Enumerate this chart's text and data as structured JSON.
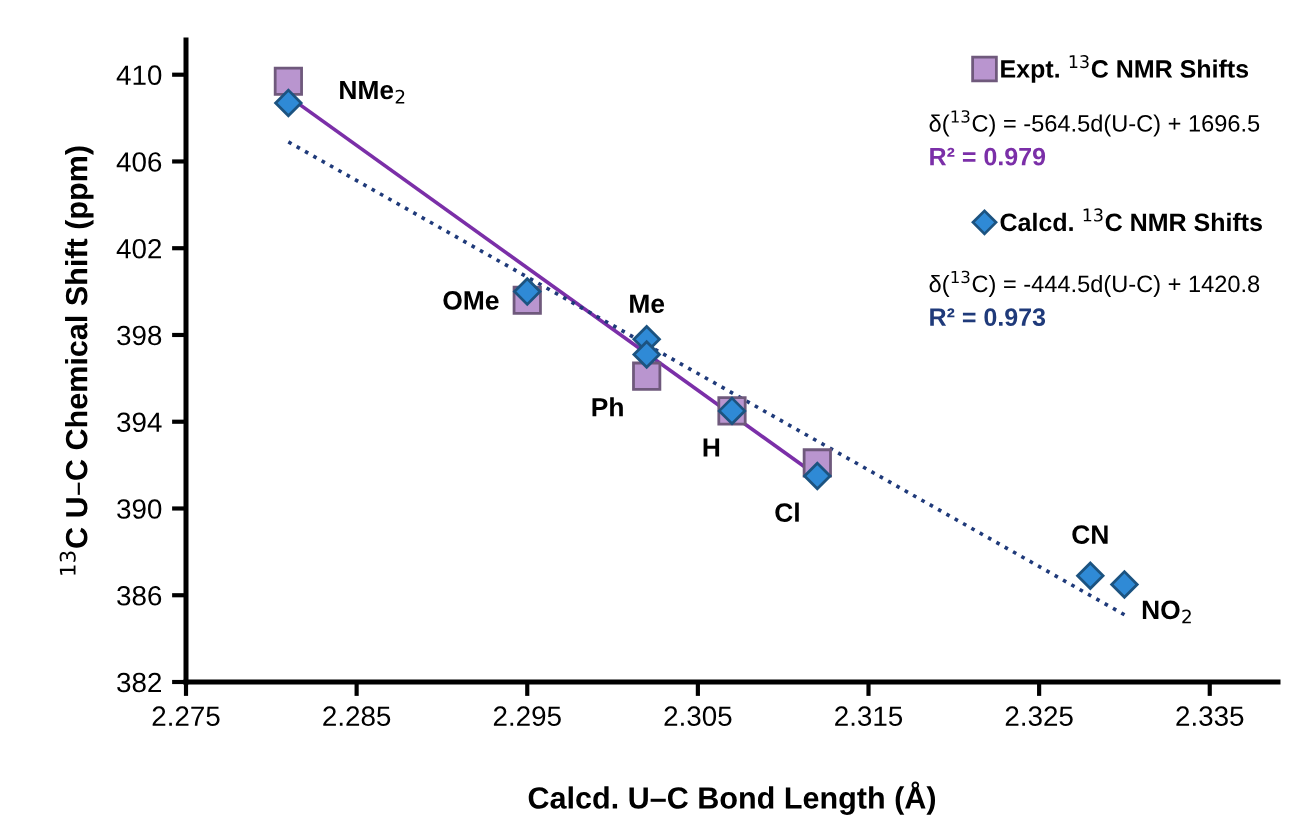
{
  "chart_data": {
    "type": "scatter",
    "xlabel": "Calcd. U–C Bond Length (Å)",
    "ylabel": "$^{13}$C U–C Chemical Shift (ppm)",
    "xlim": [
      2.275,
      2.339
    ],
    "xticks": [
      2.275,
      2.285,
      2.295,
      2.305,
      2.315,
      2.325,
      2.335
    ],
    "ylim": [
      382,
      411.6
    ],
    "yticks": [
      382,
      386,
      390,
      394,
      398,
      402,
      406,
      410
    ],
    "grid": false,
    "legend": "top right",
    "series": [
      {
        "name": "Expt. $^{13}$C NMR Shifts",
        "marker": "square",
        "color": "#b995cf",
        "x": [
          2.281,
          2.295,
          2.302,
          2.307,
          2.312
        ],
        "values": [
          409.7,
          399.6,
          396.1,
          394.5,
          392.1
        ]
      },
      {
        "name": "Calcd. $^{13}$C NMR Shifts",
        "marker": "diamond",
        "color": "#2f8ad6",
        "x": [
          2.281,
          2.295,
          2.302,
          2.302,
          2.307,
          2.312,
          2.328,
          2.33
        ],
        "values": [
          408.7,
          400.0,
          397.8,
          397.1,
          394.5,
          391.5,
          386.9,
          386.5
        ]
      },
      {
        "type": "line",
        "line_style": "solid",
        "color": "#7b2fa8",
        "x": [
          2.281,
          2.312
        ],
        "values": [
          409.0,
          391.5
        ]
      },
      {
        "type": "line",
        "line_style": "dotted",
        "color": "#1f3a7a",
        "x": [
          2.281,
          2.33
        ],
        "values": [
          406.9,
          385.1
        ]
      }
    ],
    "annotations": [
      "δ($^{13}$C) = -564.5d(U-C) + 1696.5",
      "R² = 0.979",
      "δ($^{13}$C) = -444.5d(U-C) + 1420.8",
      "R² = 0.973",
      {
        "text": "NMe$_{2}$",
        "x": 2.281,
        "y": 409.7
      },
      {
        "text": "OMe",
        "x": 2.295,
        "y": 400.0
      },
      {
        "text": "Me",
        "x": 2.302,
        "y": 397.8
      },
      {
        "text": "Ph",
        "x": 2.302,
        "y": 396.1
      },
      {
        "text": "H",
        "x": 2.307,
        "y": 394.5
      },
      {
        "text": "Cl",
        "x": 2.312,
        "y": 391.5
      },
      {
        "text": "CN",
        "x": 2.328,
        "y": 386.9
      },
      {
        "text": "NO$_{2}$",
        "x": 2.33,
        "y": 386.5
      }
    ]
  }
}
